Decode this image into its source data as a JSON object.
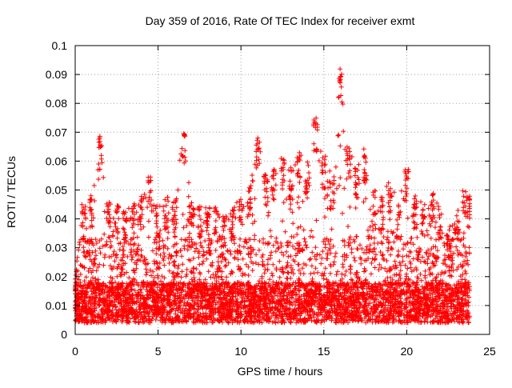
{
  "chart_data": {
    "type": "scatter",
    "title": "Day 359 of 2016, Rate Of TEC Index for receiver exmt",
    "xlabel": "GPS time / hours",
    "ylabel": "ROTI / TECUs",
    "xlim": [
      0,
      25
    ],
    "ylim": [
      0,
      0.1
    ],
    "xticks": [
      "0",
      "5",
      "10",
      "15",
      "20",
      "25"
    ],
    "yticks": [
      "0",
      "0.01",
      "0.02",
      "0.03",
      "0.04",
      "0.05",
      "0.06",
      "0.07",
      "0.08",
      "0.09",
      "0.1"
    ],
    "grid": true,
    "marker": "+",
    "color": "#ff0000",
    "series": [
      {
        "name": "",
        "envelope_hours": [
          0,
          0.5,
          1,
          1.5,
          2,
          2.5,
          3,
          3.5,
          4,
          4.5,
          5,
          5.5,
          6,
          6.5,
          7,
          7.5,
          8,
          8.5,
          9,
          9.5,
          10,
          10.5,
          11,
          11.5,
          12,
          12.5,
          13,
          13.5,
          14,
          14.5,
          15,
          15.5,
          16,
          16.5,
          17,
          17.5,
          18,
          18.5,
          19,
          19.5,
          20,
          20.5,
          21,
          21.5,
          22,
          22.5,
          23,
          23.5,
          23.8
        ],
        "envelope_max": [
          0.021,
          0.045,
          0.048,
          0.069,
          0.047,
          0.045,
          0.043,
          0.045,
          0.048,
          0.056,
          0.046,
          0.048,
          0.047,
          0.07,
          0.046,
          0.045,
          0.044,
          0.045,
          0.042,
          0.045,
          0.05,
          0.051,
          0.069,
          0.055,
          0.058,
          0.062,
          0.058,
          0.064,
          0.06,
          0.075,
          0.062,
          0.055,
          0.092,
          0.065,
          0.059,
          0.065,
          0.05,
          0.048,
          0.054,
          0.045,
          0.058,
          0.048,
          0.046,
          0.049,
          0.045,
          0.037,
          0.045,
          0.051,
          0.049
        ]
      }
    ]
  }
}
